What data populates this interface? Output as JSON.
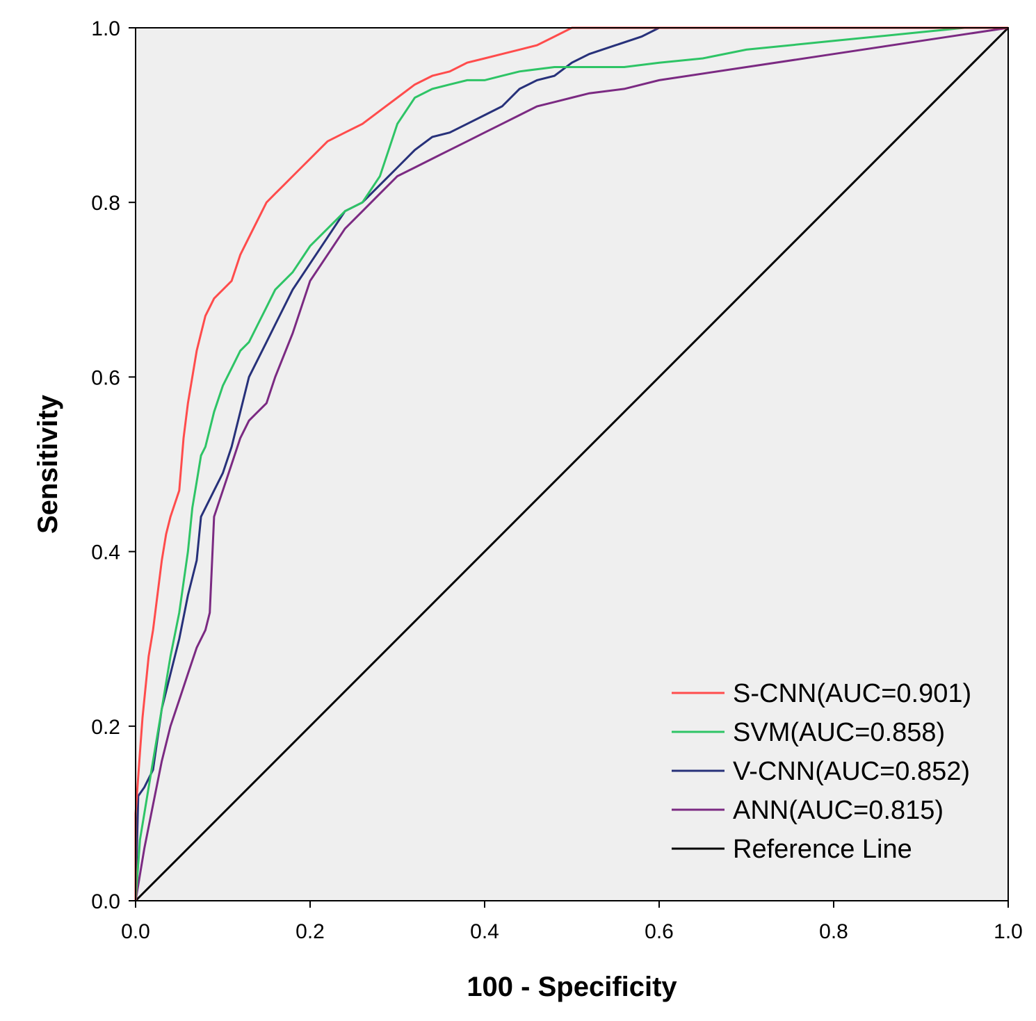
{
  "chart_data": {
    "type": "line",
    "title": "",
    "xlabel": "100 - Specificity",
    "ylabel": "Sensitivity",
    "xlim": [
      0,
      1
    ],
    "ylim": [
      0,
      1
    ],
    "xticks": [
      "0.0",
      "0.2",
      "0.4",
      "0.6",
      "0.8",
      "1.0"
    ],
    "yticks": [
      "0.0",
      "0.2",
      "0.4",
      "0.6",
      "0.8",
      "1.0"
    ],
    "xtick_values": [
      0,
      0.2,
      0.4,
      0.6,
      0.8,
      1.0
    ],
    "ytick_values": [
      0,
      0.2,
      0.4,
      0.6,
      0.8,
      1.0
    ],
    "grid": false,
    "legend_position": "bottom-right",
    "plot_background": "#efefef",
    "series": [
      {
        "name": "S-CNN(AUC=0.901)",
        "color": "#ff4c4c",
        "x": [
          0,
          0,
          0.005,
          0.008,
          0.015,
          0.02,
          0.025,
          0.03,
          0.035,
          0.04,
          0.05,
          0.055,
          0.06,
          0.065,
          0.07,
          0.075,
          0.08,
          0.085,
          0.09,
          0.095,
          0.1,
          0.11,
          0.12,
          0.13,
          0.14,
          0.15,
          0.16,
          0.17,
          0.18,
          0.19,
          0.2,
          0.21,
          0.22,
          0.24,
          0.26,
          0.28,
          0.3,
          0.32,
          0.34,
          0.36,
          0.38,
          0.4,
          0.42,
          0.44,
          0.46,
          0.48,
          0.5,
          0.55,
          0.6,
          0.7,
          0.8,
          0.9,
          1.0
        ],
        "y": [
          0,
          0.1,
          0.17,
          0.21,
          0.28,
          0.31,
          0.35,
          0.39,
          0.42,
          0.44,
          0.47,
          0.53,
          0.57,
          0.6,
          0.63,
          0.65,
          0.67,
          0.68,
          0.69,
          0.695,
          0.7,
          0.71,
          0.74,
          0.76,
          0.78,
          0.8,
          0.81,
          0.82,
          0.83,
          0.84,
          0.85,
          0.86,
          0.87,
          0.88,
          0.89,
          0.905,
          0.92,
          0.935,
          0.945,
          0.95,
          0.96,
          0.965,
          0.97,
          0.975,
          0.98,
          0.99,
          1.0,
          1.0,
          1.0,
          1.0,
          1.0,
          1.0,
          1.0
        ]
      },
      {
        "name": "SVM(AUC=0.858)",
        "color": "#2ec466",
        "x": [
          0,
          0.005,
          0.01,
          0.015,
          0.02,
          0.03,
          0.04,
          0.05,
          0.06,
          0.065,
          0.07,
          0.075,
          0.08,
          0.09,
          0.1,
          0.11,
          0.12,
          0.13,
          0.14,
          0.15,
          0.16,
          0.18,
          0.2,
          0.22,
          0.24,
          0.26,
          0.28,
          0.29,
          0.3,
          0.32,
          0.34,
          0.36,
          0.38,
          0.4,
          0.42,
          0.44,
          0.48,
          0.52,
          0.56,
          0.6,
          0.65,
          0.7,
          0.8,
          0.9,
          0.95,
          1.0
        ],
        "y": [
          0,
          0.07,
          0.1,
          0.13,
          0.16,
          0.22,
          0.28,
          0.33,
          0.4,
          0.45,
          0.48,
          0.51,
          0.52,
          0.56,
          0.59,
          0.61,
          0.63,
          0.64,
          0.66,
          0.68,
          0.7,
          0.72,
          0.75,
          0.77,
          0.79,
          0.8,
          0.83,
          0.86,
          0.89,
          0.92,
          0.93,
          0.935,
          0.94,
          0.94,
          0.945,
          0.95,
          0.955,
          0.955,
          0.955,
          0.96,
          0.965,
          0.975,
          0.985,
          0.995,
          1.0,
          1.0
        ]
      },
      {
        "name": "V-CNN(AUC=0.852)",
        "color": "#27317a",
        "x": [
          0,
          0.003,
          0.01,
          0.02,
          0.03,
          0.04,
          0.05,
          0.06,
          0.07,
          0.075,
          0.08,
          0.09,
          0.1,
          0.11,
          0.12,
          0.13,
          0.14,
          0.15,
          0.16,
          0.18,
          0.2,
          0.22,
          0.24,
          0.26,
          0.28,
          0.3,
          0.32,
          0.34,
          0.36,
          0.38,
          0.4,
          0.42,
          0.44,
          0.46,
          0.48,
          0.5,
          0.52,
          0.55,
          0.58,
          0.6,
          0.7,
          0.8,
          0.9,
          1.0
        ],
        "y": [
          0,
          0.12,
          0.13,
          0.15,
          0.22,
          0.26,
          0.3,
          0.35,
          0.39,
          0.44,
          0.45,
          0.47,
          0.49,
          0.52,
          0.56,
          0.6,
          0.62,
          0.64,
          0.66,
          0.7,
          0.73,
          0.76,
          0.79,
          0.8,
          0.82,
          0.84,
          0.86,
          0.875,
          0.88,
          0.89,
          0.9,
          0.91,
          0.93,
          0.94,
          0.945,
          0.96,
          0.97,
          0.98,
          0.99,
          1.0,
          1.0,
          1.0,
          1.0,
          1.0
        ]
      },
      {
        "name": "ANN(AUC=0.815)",
        "color": "#7b2a82",
        "x": [
          0,
          0.01,
          0.02,
          0.03,
          0.04,
          0.05,
          0.06,
          0.07,
          0.08,
          0.085,
          0.09,
          0.1,
          0.11,
          0.12,
          0.13,
          0.14,
          0.15,
          0.16,
          0.18,
          0.2,
          0.22,
          0.24,
          0.26,
          0.28,
          0.3,
          0.32,
          0.34,
          0.36,
          0.38,
          0.4,
          0.42,
          0.44,
          0.46,
          0.48,
          0.5,
          0.52,
          0.56,
          0.6,
          0.7,
          0.8,
          0.9,
          1.0
        ],
        "y": [
          0,
          0.06,
          0.11,
          0.16,
          0.2,
          0.23,
          0.26,
          0.29,
          0.31,
          0.33,
          0.44,
          0.47,
          0.5,
          0.53,
          0.55,
          0.56,
          0.57,
          0.6,
          0.65,
          0.71,
          0.74,
          0.77,
          0.79,
          0.81,
          0.83,
          0.84,
          0.85,
          0.86,
          0.87,
          0.88,
          0.89,
          0.9,
          0.91,
          0.915,
          0.92,
          0.925,
          0.93,
          0.94,
          0.955,
          0.97,
          0.985,
          1.0
        ]
      },
      {
        "name": "Reference Line",
        "color": "#000000",
        "x": [
          0,
          1
        ],
        "y": [
          0,
          1
        ]
      }
    ]
  }
}
